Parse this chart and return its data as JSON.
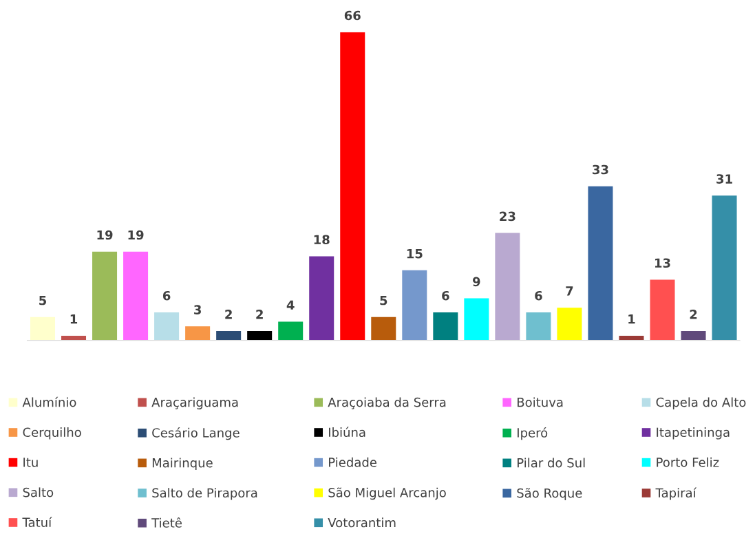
{
  "chart_data": {
    "type": "bar",
    "categories": [
      null,
      null,
      null,
      null,
      null,
      null,
      null,
      null,
      null,
      null,
      null,
      null,
      null,
      null,
      null,
      null,
      null,
      null,
      null,
      null,
      null,
      null,
      null
    ],
    "stacked": true,
    "data_labels": true,
    "legend": "bottom",
    "grid": false,
    "series": [
      {
        "name": "Alumínio",
        "color": "#ffffcc",
        "values": [
          5,
          null,
          null,
          null,
          null,
          null,
          null,
          null,
          null,
          null,
          null,
          null,
          null,
          null,
          null,
          null,
          null,
          null,
          null,
          null,
          null,
          null,
          null
        ]
      },
      {
        "name": "Araçariguama",
        "color": "#c0504d",
        "values": [
          null,
          1,
          null,
          null,
          null,
          null,
          null,
          null,
          null,
          null,
          null,
          null,
          null,
          null,
          null,
          null,
          null,
          null,
          null,
          null,
          null,
          null,
          null
        ]
      },
      {
        "name": "Araçoiaba da Serra",
        "color": "#9bbb59",
        "values": [
          null,
          null,
          19,
          null,
          null,
          null,
          null,
          null,
          null,
          null,
          null,
          null,
          null,
          null,
          null,
          null,
          null,
          null,
          null,
          null,
          null,
          null,
          null
        ]
      },
      {
        "name": "Boituva",
        "color": "#ff66ff",
        "values": [
          null,
          null,
          null,
          19,
          null,
          null,
          null,
          null,
          null,
          null,
          null,
          null,
          null,
          null,
          null,
          null,
          null,
          null,
          null,
          null,
          null,
          null,
          null
        ]
      },
      {
        "name": "Capela do Alto",
        "color": "#b7dee8",
        "values": [
          null,
          null,
          null,
          null,
          6,
          null,
          null,
          null,
          null,
          null,
          null,
          null,
          null,
          null,
          null,
          null,
          null,
          null,
          null,
          null,
          null,
          null,
          null
        ]
      },
      {
        "name": "Cerquilho",
        "color": "#f79646",
        "values": [
          null,
          null,
          null,
          null,
          null,
          3,
          null,
          null,
          null,
          null,
          null,
          null,
          null,
          null,
          null,
          null,
          null,
          null,
          null,
          null,
          null,
          null,
          null
        ]
      },
      {
        "name": "Cesário Lange",
        "color": "#2c4d75",
        "values": [
          null,
          null,
          null,
          null,
          null,
          null,
          2,
          null,
          null,
          null,
          null,
          null,
          null,
          null,
          null,
          null,
          null,
          null,
          null,
          null,
          null,
          null,
          null
        ]
      },
      {
        "name": "Ibiúna",
        "color": "#000000",
        "values": [
          null,
          null,
          null,
          null,
          null,
          null,
          null,
          2,
          null,
          null,
          null,
          null,
          null,
          null,
          null,
          null,
          null,
          null,
          null,
          null,
          null,
          null,
          null
        ]
      },
      {
        "name": "Iperó",
        "color": "#00b050",
        "values": [
          null,
          null,
          null,
          null,
          null,
          null,
          null,
          null,
          4,
          null,
          null,
          null,
          null,
          null,
          null,
          null,
          null,
          null,
          null,
          null,
          null,
          null,
          null
        ]
      },
      {
        "name": "Itapetininga",
        "color": "#7030a0",
        "values": [
          null,
          null,
          null,
          null,
          null,
          null,
          null,
          null,
          null,
          18,
          null,
          null,
          null,
          null,
          null,
          null,
          null,
          null,
          null,
          null,
          null,
          null,
          null
        ]
      },
      {
        "name": "Itu",
        "color": "#ff0000",
        "values": [
          null,
          null,
          null,
          null,
          null,
          null,
          null,
          null,
          null,
          null,
          66,
          null,
          null,
          null,
          null,
          null,
          null,
          null,
          null,
          null,
          null,
          null,
          null
        ]
      },
      {
        "name": "Mairinque",
        "color": "#b85c0c",
        "values": [
          null,
          null,
          null,
          null,
          null,
          null,
          null,
          null,
          null,
          null,
          null,
          5,
          null,
          null,
          null,
          null,
          null,
          null,
          null,
          null,
          null,
          null,
          null
        ]
      },
      {
        "name": "Piedade",
        "color": "#7598cc",
        "values": [
          null,
          null,
          null,
          null,
          null,
          null,
          null,
          null,
          null,
          null,
          null,
          null,
          15,
          null,
          null,
          null,
          null,
          null,
          null,
          null,
          null,
          null,
          null
        ]
      },
      {
        "name": "Pilar do Sul",
        "color": "#008080",
        "values": [
          null,
          null,
          null,
          null,
          null,
          null,
          null,
          null,
          null,
          null,
          null,
          null,
          null,
          6,
          null,
          null,
          null,
          null,
          null,
          null,
          null,
          null,
          null
        ]
      },
      {
        "name": "Porto Feliz",
        "color": "#00ffff",
        "values": [
          null,
          null,
          null,
          null,
          null,
          null,
          null,
          null,
          null,
          null,
          null,
          null,
          null,
          null,
          9,
          null,
          null,
          null,
          null,
          null,
          null,
          null,
          null
        ]
      },
      {
        "name": "Salto",
        "color": "#b9a9d0",
        "values": [
          null,
          null,
          null,
          null,
          null,
          null,
          null,
          null,
          null,
          null,
          null,
          null,
          null,
          null,
          null,
          23,
          null,
          null,
          null,
          null,
          null,
          null,
          null
        ]
      },
      {
        "name": "Salto de Pirapora",
        "color": "#6fbfcf",
        "values": [
          null,
          null,
          null,
          null,
          null,
          null,
          null,
          null,
          null,
          null,
          null,
          null,
          null,
          null,
          null,
          null,
          6,
          null,
          null,
          null,
          null,
          null,
          null
        ]
      },
      {
        "name": "São Miguel Arcanjo",
        "color": "#ffff00",
        "values": [
          null,
          null,
          null,
          null,
          null,
          null,
          null,
          null,
          null,
          null,
          null,
          null,
          null,
          null,
          null,
          null,
          null,
          7,
          null,
          null,
          null,
          null,
          null
        ]
      },
      {
        "name": "São Roque",
        "color": "#3a67a0",
        "values": [
          null,
          null,
          null,
          null,
          null,
          null,
          null,
          null,
          null,
          null,
          null,
          null,
          null,
          null,
          null,
          null,
          null,
          null,
          33,
          null,
          null,
          null,
          null
        ]
      },
      {
        "name": "Tapiraí",
        "color": "#9b3a36",
        "values": [
          null,
          null,
          null,
          null,
          null,
          null,
          null,
          null,
          null,
          null,
          null,
          null,
          null,
          null,
          null,
          null,
          null,
          null,
          null,
          1,
          null,
          null,
          null
        ]
      },
      {
        "name": "Tatuí",
        "color": "#ff5050",
        "values": [
          null,
          null,
          null,
          null,
          null,
          null,
          null,
          null,
          null,
          null,
          null,
          null,
          null,
          null,
          null,
          null,
          null,
          null,
          null,
          null,
          13,
          null,
          null
        ]
      },
      {
        "name": "Tietê",
        "color": "#604a7b",
        "values": [
          null,
          null,
          null,
          null,
          null,
          null,
          null,
          null,
          null,
          null,
          null,
          null,
          null,
          null,
          null,
          null,
          null,
          null,
          null,
          null,
          null,
          2,
          null
        ]
      },
      {
        "name": "Votorantim",
        "color": "#358fa8",
        "values": [
          null,
          null,
          null,
          null,
          null,
          null,
          null,
          null,
          null,
          null,
          null,
          null,
          null,
          null,
          null,
          null,
          null,
          null,
          null,
          null,
          null,
          null,
          31
        ]
      }
    ]
  }
}
